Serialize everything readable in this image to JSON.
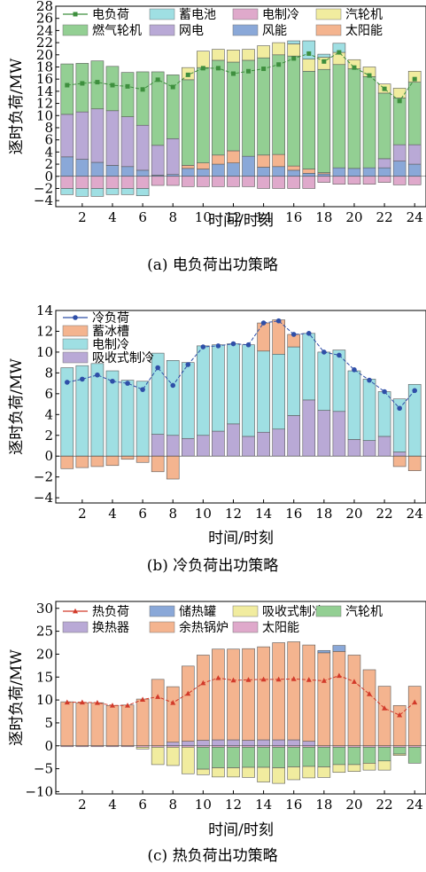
{
  "colors": {
    "gas_turbine": "#93cf93",
    "grid": "#b9a9d6",
    "wind": "#8aa8d8",
    "solar": "#f4b48f",
    "battery": "#9fdfe3",
    "elec_cool": "#dfa9cb",
    "steam_turbine": "#f1ec9f",
    "elec_load_line": "#3e8f3e",
    "ice_storage": "#f4b48f",
    "cool_elec": "#9fdfe3",
    "absorb": "#b9a9d6",
    "cool_load_line": "#2f4fa8",
    "heat_storage": "#8aa8d8",
    "heat_exchanger": "#b9a9d6",
    "waste_boiler": "#f4b48f",
    "heat_solar": "#dfa9cb",
    "heat_load_line": "#d23a2a"
  },
  "chart_data": [
    {
      "type": "bar",
      "caption": "(a) 电负荷出功策略",
      "xlabel": "时间/时刻",
      "ylabel": "逐时负荷/MW",
      "ylim": [
        -5,
        28
      ],
      "yticks": [
        -4,
        -2,
        0,
        2,
        4,
        6,
        8,
        10,
        12,
        14,
        16,
        18,
        20,
        22,
        24,
        26,
        28
      ],
      "xticks": [
        2,
        4,
        6,
        8,
        10,
        12,
        14,
        16,
        18,
        20,
        22,
        24
      ],
      "legend_cols": 4,
      "legend_labels": [
        "电负荷",
        "蓄电池",
        "电制冷",
        "汽轮机",
        "燃气轮机",
        "网电",
        "风能",
        "太阳能"
      ],
      "x": [
        1,
        2,
        3,
        4,
        5,
        6,
        7,
        8,
        9,
        10,
        11,
        12,
        13,
        14,
        15,
        16,
        17,
        18,
        19,
        20,
        21,
        22,
        23,
        24
      ],
      "series": [
        {
          "name": "风能",
          "color": "#8aa8d8",
          "values": [
            3.2,
            2.8,
            2.3,
            1.8,
            1.6,
            1.0,
            0.2,
            0.3,
            1.3,
            1.2,
            2.0,
            2.2,
            3.3,
            1.5,
            1.6,
            1.0,
            0.5,
            0.4,
            1.4,
            1.3,
            1.4,
            1.4,
            2.5,
            2.0
          ]
        },
        {
          "name": "太阳能",
          "color": "#f4b48f",
          "values": [
            0,
            0,
            0,
            0,
            0,
            0,
            0,
            0,
            0.5,
            1.0,
            1.5,
            2.0,
            0,
            2.0,
            2.0,
            0.7,
            0.7,
            0.2,
            0,
            0,
            0,
            0,
            0,
            0
          ]
        },
        {
          "name": "网电",
          "color": "#b9a9d6",
          "values": [
            7.0,
            7.8,
            8.8,
            9.0,
            8.2,
            7.4,
            4.9,
            5.9,
            0,
            0,
            0,
            0,
            0,
            0,
            0,
            0,
            0,
            0,
            0,
            0,
            0,
            1.5,
            2.7,
            3.2
          ]
        },
        {
          "name": "燃气轮机",
          "color": "#93cf93",
          "values": [
            8.3,
            8.0,
            7.9,
            7.3,
            7.3,
            8.8,
            12.1,
            10.5,
            14.1,
            15.7,
            15.6,
            14.6,
            15.8,
            16.0,
            16.4,
            18.1,
            16.1,
            17.0,
            17.0,
            16.4,
            15.0,
            10.8,
            7.7,
            10.3
          ]
        },
        {
          "name": "汽轮机",
          "color": "#f1ec9f",
          "values": [
            0,
            0,
            0,
            0,
            0,
            0,
            0,
            0,
            2.0,
            2.7,
            1.8,
            2.0,
            1.8,
            2.0,
            2.0,
            2.0,
            2.0,
            2.0,
            2.0,
            1.5,
            1.6,
            1.5,
            1.6,
            1.8
          ]
        },
        {
          "name": "蓄电池",
          "color": "#9fdfe3",
          "values": [
            0,
            0,
            0,
            0,
            0,
            0,
            0,
            0,
            0,
            0,
            0,
            0,
            0,
            0,
            0,
            0.5,
            3.0,
            0.5,
            1.5,
            0,
            0,
            0,
            0,
            0
          ]
        },
        {
          "name": "电制冷",
          "color": "#dfa9cb",
          "values": [
            -2.0,
            -2.0,
            -2.0,
            -2.0,
            -2.0,
            -2.0,
            -1.5,
            -1.5,
            -1.7,
            -1.7,
            -1.7,
            -1.7,
            -1.7,
            -2.0,
            -2.0,
            -2.0,
            -2.0,
            -1.0,
            -1.3,
            -1.3,
            -1.3,
            -1.0,
            -1.4,
            -1.4
          ]
        },
        {
          "name": "蓄电池",
          "color": "#9fdfe3",
          "values": [
            -1.0,
            -1.3,
            -1.3,
            -1.0,
            -1.0,
            -1.2,
            0,
            0,
            0,
            0,
            0,
            0,
            0,
            0,
            0,
            0,
            0,
            0,
            0,
            0,
            0,
            0,
            0,
            0
          ]
        }
      ],
      "line": {
        "name": "电负荷",
        "color": "#3e8f3e",
        "marker": "square",
        "values": [
          15.0,
          15.3,
          15.5,
          15.0,
          14.8,
          14.3,
          15.9,
          14.7,
          16.7,
          17.8,
          17.8,
          16.9,
          17.3,
          17.7,
          18.4,
          19.4,
          20.2,
          18.9,
          20.4,
          17.9,
          16.6,
          14.4,
          12.4,
          16.0
        ]
      }
    },
    {
      "type": "bar",
      "caption": "(b) 冷负荷出功策略",
      "xlabel": "时间/时刻",
      "ylabel": "逐时负荷/MW",
      "ylim": [
        -4.5,
        14
      ],
      "yticks": [
        -4,
        -2,
        0,
        2,
        4,
        6,
        8,
        10,
        12,
        14
      ],
      "xticks": [
        2,
        4,
        6,
        8,
        10,
        12,
        14,
        16,
        18,
        20,
        22,
        24
      ],
      "legend_cols": 1,
      "legend_labels": [
        "冷负荷",
        "蓄冰槽",
        "电制冷",
        "吸收式制冷"
      ],
      "x": [
        1,
        2,
        3,
        4,
        5,
        6,
        7,
        8,
        9,
        10,
        11,
        12,
        13,
        14,
        15,
        16,
        17,
        18,
        19,
        20,
        21,
        22,
        23,
        24
      ],
      "series": [
        {
          "name": "吸收式制冷",
          "color": "#b9a9d6",
          "values": [
            0,
            0,
            0,
            0,
            0,
            0,
            2.1,
            2.0,
            1.7,
            2.0,
            2.4,
            3.1,
            1.9,
            2.3,
            2.6,
            3.9,
            5.4,
            4.4,
            4.3,
            1.6,
            1.5,
            1.9,
            0.4,
            0
          ]
        },
        {
          "name": "电制冷",
          "color": "#9fdfe3",
          "values": [
            8.5,
            8.7,
            8.9,
            8.2,
            7.3,
            7.2,
            7.8,
            7.2,
            7.3,
            8.6,
            8.3,
            7.7,
            8.8,
            7.8,
            7.2,
            6.6,
            6.4,
            5.6,
            5.9,
            6.6,
            5.9,
            4.3,
            5.1,
            6.9
          ]
        },
        {
          "name": "蓄冰槽",
          "color": "#f4b48f",
          "values": [
            0,
            0,
            0,
            0,
            0,
            0,
            0,
            0,
            0,
            0,
            0,
            0,
            0,
            2.7,
            3.3,
            1.2,
            0,
            0,
            0,
            0,
            0,
            0,
            0,
            0
          ]
        },
        {
          "name": "蓄冰槽",
          "color": "#f4b48f",
          "values": [
            -1.2,
            -1.1,
            -1.0,
            -0.9,
            -0.3,
            -0.6,
            -1.5,
            -2.2,
            0,
            0,
            0,
            0,
            0,
            0,
            0,
            0,
            0,
            0,
            0,
            0,
            0,
            0,
            -1.0,
            -1.4
          ]
        }
      ],
      "line": {
        "name": "冷负荷",
        "color": "#2f4fa8",
        "marker": "circle",
        "values": [
          7.1,
          7.4,
          7.8,
          7.2,
          7.0,
          6.4,
          8.5,
          6.8,
          8.8,
          10.5,
          10.6,
          10.8,
          10.7,
          12.8,
          13.0,
          11.7,
          11.8,
          10.0,
          9.7,
          8.3,
          7.3,
          6.2,
          4.6,
          6.3
        ]
      }
    },
    {
      "type": "bar",
      "caption": "(c) 热负荷出功策略",
      "xlabel": "时间/时刻",
      "ylabel": "逐时负荷/MW",
      "ylim": [
        -10.5,
        31.5
      ],
      "yticks": [
        -10,
        -5,
        0,
        5,
        10,
        15,
        20,
        25,
        30
      ],
      "xticks": [
        2,
        4,
        6,
        8,
        10,
        12,
        14,
        16,
        18,
        20,
        22,
        24
      ],
      "legend_cols": 4,
      "legend_labels": [
        "热负荷",
        "储热罐",
        "吸收式制冷",
        "汽轮机",
        "换热器",
        "余热锅炉",
        "太阳能"
      ],
      "x": [
        1,
        2,
        3,
        4,
        5,
        6,
        7,
        8,
        9,
        10,
        11,
        12,
        13,
        14,
        15,
        16,
        17,
        18,
        19,
        20,
        21,
        22,
        23,
        24
      ],
      "series": [
        {
          "name": "换热器",
          "color": "#b9a9d6",
          "values": [
            0,
            0,
            0,
            0,
            0,
            0,
            0,
            0.8,
            1.0,
            1.2,
            1.3,
            1.3,
            1.2,
            1.3,
            1.3,
            1.3,
            1.0,
            0,
            0,
            0,
            0,
            0,
            0,
            0
          ]
        },
        {
          "name": "余热锅炉",
          "color": "#f4b48f",
          "values": [
            9.6,
            9.4,
            9.4,
            8.8,
            8.9,
            10.2,
            14.5,
            12.1,
            16.4,
            18.6,
            19.8,
            19.8,
            20.0,
            20.3,
            21.2,
            21.4,
            21.0,
            20.3,
            20.6,
            19.8,
            16.6,
            13.0,
            8.8,
            13.0
          ]
        },
        {
          "name": "储热罐",
          "color": "#8aa8d8",
          "values": [
            0,
            0,
            0,
            0,
            0,
            0,
            0,
            0,
            0,
            0,
            0,
            0,
            0,
            0,
            0,
            0,
            0,
            0.5,
            1.3,
            0,
            0,
            0,
            0,
            0
          ]
        },
        {
          "name": "太阳能",
          "color": "#dfa9cb",
          "values": [
            -0.2,
            -0.2,
            -0.2,
            -0.2,
            -0.2,
            -0.3,
            -0.3,
            -0.3,
            -0.3,
            -0.3,
            -0.3,
            -0.3,
            -0.3,
            -0.3,
            -0.3,
            -0.3,
            -0.3,
            -0.3,
            -0.3,
            -0.3,
            -0.3,
            -0.3,
            -0.3,
            -0.3
          ]
        },
        {
          "name": "汽轮机",
          "color": "#93cf93",
          "values": [
            0,
            0,
            0,
            0,
            0,
            0,
            0,
            0,
            0,
            -4.8,
            -4.5,
            -4.5,
            -4.4,
            -4.4,
            -4.5,
            -4.3,
            -4.2,
            -4.3,
            -3.8,
            -3.8,
            -3.5,
            -3.0,
            -1.5,
            -3.5
          ]
        },
        {
          "name": "吸收式制冷",
          "color": "#f1ec9f",
          "values": [
            0,
            0,
            0,
            0,
            0,
            -0.4,
            -3.8,
            -4.0,
            -5.8,
            -1.2,
            -2.0,
            -2.0,
            -2.2,
            -3.2,
            -3.4,
            -2.8,
            -2.5,
            -2.3,
            -1.7,
            -1.5,
            -1.5,
            -2.0,
            -0.3,
            0
          ]
        }
      ],
      "line": {
        "name": "热负荷",
        "color": "#d23a2a",
        "marker": "triangle",
        "values": [
          9.5,
          9.5,
          9.4,
          8.8,
          8.8,
          10.1,
          10.7,
          9.4,
          11.4,
          13.7,
          14.8,
          14.3,
          14.4,
          14.5,
          14.5,
          14.6,
          14.4,
          14.2,
          15.3,
          14.0,
          11.3,
          8.2,
          6.7,
          9.5
        ]
      }
    }
  ]
}
